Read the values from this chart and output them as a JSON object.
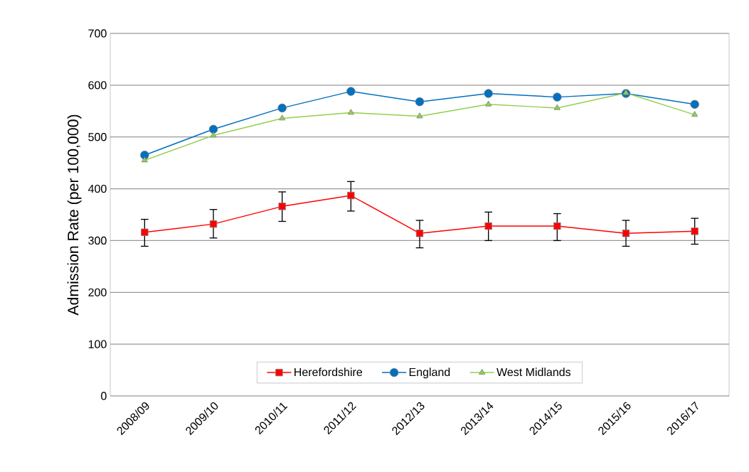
{
  "chart_data": {
    "type": "line",
    "ylabel": "Admission Rate (per 100,000)",
    "categories": [
      "2008/09",
      "2009/10",
      "2010/11",
      "2011/12",
      "2012/13",
      "2013/14",
      "2014/15",
      "2015/16",
      "2016/17"
    ],
    "series": [
      {
        "name": "Herefordshire",
        "color": "#ff0000",
        "marker": "square",
        "values": [
          316,
          332,
          366,
          387,
          314,
          328,
          328,
          314,
          318
        ],
        "errors": [
          [
            289,
            341
          ],
          [
            305,
            360
          ],
          [
            337,
            394
          ],
          [
            357,
            414
          ],
          [
            286,
            339
          ],
          [
            300,
            355
          ],
          [
            300,
            352
          ],
          [
            289,
            339
          ],
          [
            293,
            343
          ]
        ]
      },
      {
        "name": "England",
        "color": "#0070c0",
        "marker": "circle",
        "values": [
          465,
          515,
          556,
          588,
          568,
          584,
          577,
          584,
          563
        ]
      },
      {
        "name": "West Midlands",
        "color": "#92d050",
        "marker": "triangle",
        "values": [
          455,
          503,
          536,
          547,
          540,
          563,
          556,
          585,
          543
        ]
      }
    ],
    "ylim": [
      0,
      700
    ],
    "yticks": [
      0,
      100,
      200,
      300,
      400,
      500,
      600,
      700
    ],
    "grid": "y",
    "legend": "bottom"
  }
}
